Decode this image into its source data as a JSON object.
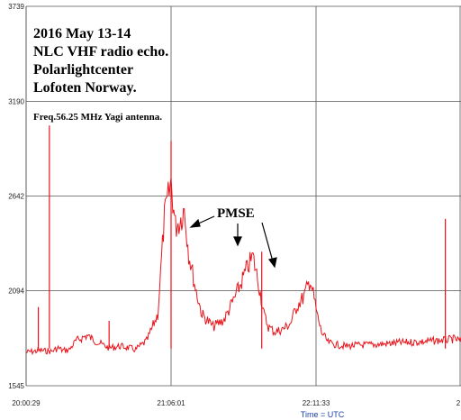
{
  "chart_data": {
    "type": "line",
    "title_lines": [
      "2016 May 13-14",
      "NLC VHF radio echo.",
      "Polarlightcenter",
      "Lofoten Norway."
    ],
    "subtitle": "Freq.56.25 MHz Yagi antenna.",
    "xlabel": "Time = UTC",
    "ylabel": "",
    "x_ticks": [
      "20:00:29",
      "21:06:01",
      "22:11:33",
      "2"
    ],
    "y_ticks": [
      3739,
      3190,
      2642,
      2094,
      1545
    ],
    "ylim": [
      1545,
      3739
    ],
    "xlim": [
      "20:00:29",
      "23:17:05"
    ],
    "grid": true,
    "series_color": "#e8141b",
    "annotation": {
      "text": "PMSE",
      "targets": [
        "21:12",
        "21:47",
        "22:09"
      ]
    },
    "series": [
      {
        "x": [
          "20:00:29",
          "20:07",
          "20:12",
          "20:15",
          "20:17",
          "20:20",
          "20:23",
          "20:28",
          "20:33",
          "20:38",
          "20:43",
          "20:47",
          "20:50",
          "20:55",
          "21:00",
          "21:03",
          "21:06",
          "21:08",
          "21:10",
          "21:12",
          "21:14",
          "21:17",
          "21:20",
          "21:25",
          "21:30",
          "21:35",
          "21:40",
          "21:43",
          "21:46",
          "21:48",
          "21:50",
          "21:53",
          "21:57",
          "22:00",
          "22:03",
          "22:06",
          "22:09",
          "22:12",
          "22:14",
          "22:17",
          "22:20",
          "22:25",
          "22:30",
          "22:40",
          "22:50",
          "23:00",
          "23:05",
          "23:10",
          "23:14",
          "23:17:05"
        ],
        "values": [
          1735,
          1745,
          1740,
          1760,
          1745,
          1750,
          1800,
          1830,
          1790,
          1760,
          1770,
          1760,
          1750,
          1800,
          1950,
          2500,
          2700,
          2450,
          2480,
          2550,
          2300,
          2100,
          1950,
          1880,
          1920,
          2050,
          2200,
          2280,
          2100,
          1950,
          1880,
          1850,
          1870,
          1900,
          2000,
          2050,
          2150,
          1950,
          1850,
          1790,
          1780,
          1770,
          1775,
          1780,
          1790,
          1795,
          1800,
          1805,
          1810,
          1800
        ]
      }
    ],
    "spikes": [
      {
        "x": "20:06",
        "value": 2000
      },
      {
        "x": "20:11",
        "value": 3050
      },
      {
        "x": "20:38",
        "value": 1920
      },
      {
        "x": "21:06:01",
        "value": 2960
      },
      {
        "x": "21:47",
        "value": 2320
      },
      {
        "x": "23:10",
        "value": 2510
      }
    ]
  }
}
